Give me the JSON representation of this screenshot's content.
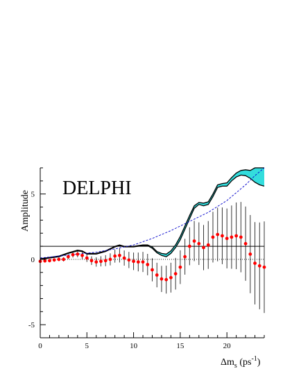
{
  "chart_data": {
    "type": "line",
    "title": "",
    "experiment_label": "DELPHI",
    "ylabel": "Amplitude",
    "xlabel": {
      "main": "Δm",
      "sub": "s",
      "unit": " (ps",
      "sup": "-1",
      "close": ")"
    },
    "xlim": [
      0,
      24
    ],
    "ylim": [
      -6,
      7
    ],
    "x_ticks": [
      0,
      5,
      10,
      15,
      20
    ],
    "y_ticks": [
      -5,
      0,
      5
    ],
    "reference_lines": [
      {
        "name": "A = 1",
        "y": 1,
        "style": "solid"
      },
      {
        "name": "A = 0",
        "y": 0,
        "style": "dotted"
      }
    ],
    "series": [
      {
        "role": "amplitude-with-errors",
        "color": "#ff0000",
        "points": [
          {
            "x": 0.0,
            "y": -0.15,
            "err": 0.1
          },
          {
            "x": 0.5,
            "y": -0.12,
            "err": 0.11
          },
          {
            "x": 1.0,
            "y": -0.1,
            "err": 0.12
          },
          {
            "x": 1.5,
            "y": -0.05,
            "err": 0.13
          },
          {
            "x": 2.0,
            "y": 0.0,
            "err": 0.14
          },
          {
            "x": 2.5,
            "y": 0.0,
            "err": 0.16
          },
          {
            "x": 3.0,
            "y": 0.2,
            "err": 0.18
          },
          {
            "x": 3.5,
            "y": 0.35,
            "err": 0.21
          },
          {
            "x": 4.0,
            "y": 0.4,
            "err": 0.24
          },
          {
            "x": 4.5,
            "y": 0.3,
            "err": 0.27
          },
          {
            "x": 5.0,
            "y": 0.1,
            "err": 0.3
          },
          {
            "x": 5.5,
            "y": -0.1,
            "err": 0.33
          },
          {
            "x": 6.0,
            "y": -0.2,
            "err": 0.36
          },
          {
            "x": 6.5,
            "y": -0.15,
            "err": 0.39
          },
          {
            "x": 7.0,
            "y": -0.1,
            "err": 0.42
          },
          {
            "x": 7.5,
            "y": 0.0,
            "err": 0.46
          },
          {
            "x": 8.0,
            "y": 0.25,
            "err": 0.5
          },
          {
            "x": 8.5,
            "y": 0.3,
            "err": 0.54
          },
          {
            "x": 9.0,
            "y": 0.1,
            "err": 0.58
          },
          {
            "x": 9.5,
            "y": -0.05,
            "err": 0.62
          },
          {
            "x": 10.0,
            "y": -0.15,
            "err": 0.67
          },
          {
            "x": 10.5,
            "y": -0.2,
            "err": 0.72
          },
          {
            "x": 11.0,
            "y": -0.2,
            "err": 0.77
          },
          {
            "x": 11.5,
            "y": -0.4,
            "err": 0.82
          },
          {
            "x": 12.0,
            "y": -0.8,
            "err": 0.88
          },
          {
            "x": 12.5,
            "y": -1.2,
            "err": 0.94
          },
          {
            "x": 13.0,
            "y": -1.5,
            "err": 1.0
          },
          {
            "x": 13.5,
            "y": -1.55,
            "err": 1.07
          },
          {
            "x": 14.0,
            "y": -1.4,
            "err": 1.14
          },
          {
            "x": 14.5,
            "y": -1.1,
            "err": 1.21
          },
          {
            "x": 15.0,
            "y": -0.6,
            "err": 1.29
          },
          {
            "x": 15.5,
            "y": 0.2,
            "err": 1.37
          },
          {
            "x": 16.0,
            "y": 1.0,
            "err": 1.45
          },
          {
            "x": 16.5,
            "y": 1.4,
            "err": 1.54
          },
          {
            "x": 17.0,
            "y": 1.2,
            "err": 1.63
          },
          {
            "x": 17.5,
            "y": 0.9,
            "err": 1.73
          },
          {
            "x": 18.0,
            "y": 1.1,
            "err": 1.83
          },
          {
            "x": 18.5,
            "y": 1.7,
            "err": 1.94
          },
          {
            "x": 19.0,
            "y": 1.9,
            "err": 2.05
          },
          {
            "x": 19.5,
            "y": 1.8,
            "err": 2.17
          },
          {
            "x": 20.0,
            "y": 1.6,
            "err": 2.29
          },
          {
            "x": 20.5,
            "y": 1.7,
            "err": 2.42
          },
          {
            "x": 21.0,
            "y": 1.8,
            "err": 2.55
          },
          {
            "x": 21.5,
            "y": 1.7,
            "err": 2.69
          },
          {
            "x": 22.0,
            "y": 1.2,
            "err": 2.84
          },
          {
            "x": 22.5,
            "y": 0.4,
            "err": 2.99
          },
          {
            "x": 23.0,
            "y": -0.3,
            "err": 3.15
          },
          {
            "x": 23.5,
            "y": -0.5,
            "err": 3.32
          },
          {
            "x": 24.0,
            "y": -0.6,
            "err": 3.5
          }
        ]
      },
      {
        "role": "dashed-limit-curve",
        "color": "#0000cc",
        "x": [
          0,
          2,
          4,
          6,
          8,
          10,
          12,
          14,
          16,
          18,
          20,
          22,
          23,
          24
        ],
        "y": [
          0.1,
          0.25,
          0.4,
          0.55,
          0.8,
          1.1,
          1.6,
          2.2,
          2.9,
          3.6,
          4.5,
          5.7,
          6.4,
          7.0
        ]
      },
      {
        "role": "limit-band",
        "color": "#000000",
        "fill": "#33dddd",
        "x": [
          0,
          1,
          2,
          3,
          4,
          4.5,
          5,
          6,
          7,
          8,
          8.5,
          9,
          10,
          11,
          11.5,
          12,
          12.5,
          13,
          13.5,
          14,
          14.5,
          15,
          15.5,
          16,
          16.5,
          17,
          17.5,
          18,
          18.5,
          19,
          19.5,
          20,
          20.5,
          21,
          21.5,
          22,
          22.5,
          23,
          23.5,
          24
        ],
        "lower": [
          0.0,
          0.1,
          0.2,
          0.45,
          0.65,
          0.6,
          0.4,
          0.4,
          0.6,
          0.95,
          1.05,
          0.95,
          0.95,
          1.05,
          1.05,
          0.85,
          0.5,
          0.3,
          0.2,
          0.45,
          0.9,
          1.5,
          2.3,
          3.1,
          3.9,
          4.2,
          4.1,
          4.2,
          4.8,
          5.5,
          5.6,
          5.6,
          6.0,
          6.3,
          6.45,
          6.4,
          6.2,
          5.9,
          5.7,
          5.6
        ],
        "upper": [
          0.05,
          0.15,
          0.25,
          0.5,
          0.7,
          0.65,
          0.45,
          0.45,
          0.65,
          1.0,
          1.1,
          1.0,
          1.0,
          1.1,
          1.1,
          0.95,
          0.6,
          0.45,
          0.4,
          0.65,
          1.1,
          1.75,
          2.55,
          3.35,
          4.1,
          4.35,
          4.3,
          4.4,
          5.0,
          5.7,
          5.8,
          5.85,
          6.25,
          6.6,
          6.8,
          6.85,
          6.8,
          7.0,
          7.0,
          7.0
        ]
      }
    ]
  }
}
